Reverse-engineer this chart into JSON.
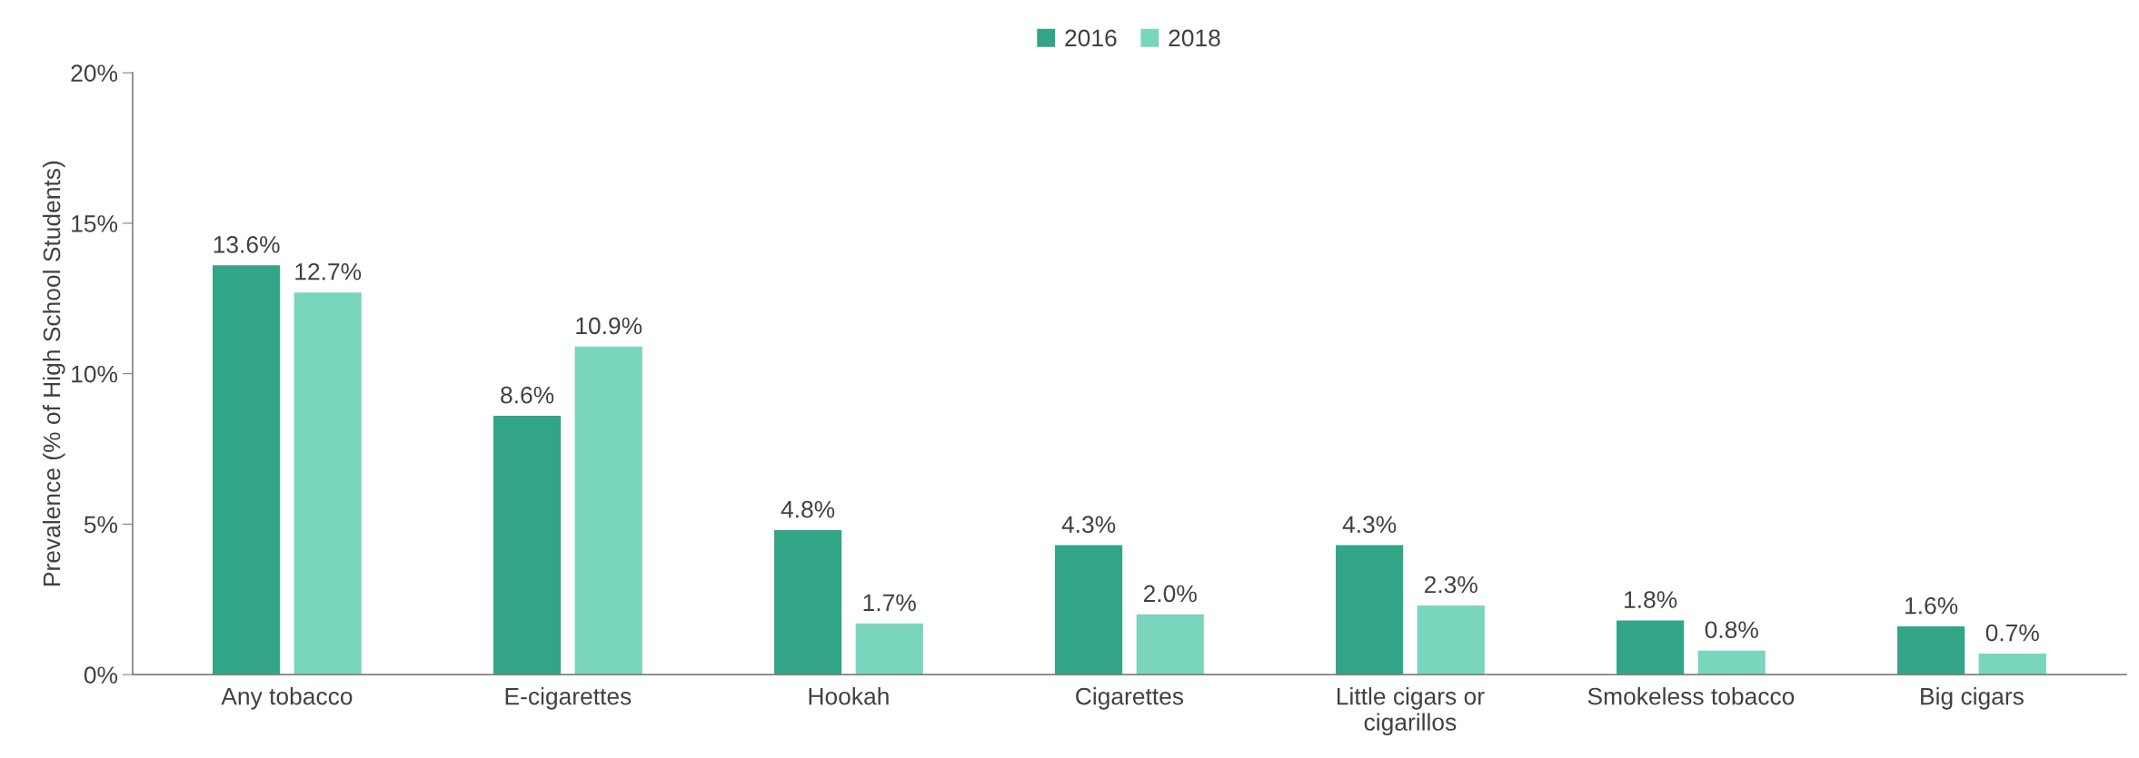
{
  "chart_data": {
    "type": "bar",
    "ylabel": "Prevalence (% of High School Students)",
    "categories": [
      "Any tobacco",
      "E-cigarettes",
      "Hookah",
      "Cigarettes",
      "Little cigars or\ncigarillos",
      "Smokeless tobacco",
      "Big cigars"
    ],
    "series": [
      {
        "name": "2016",
        "color": "#33a587",
        "values": [
          13.6,
          8.6,
          4.8,
          4.3,
          4.3,
          1.8,
          1.6
        ],
        "value_labels": [
          "13.6%",
          "8.6%",
          "4.8%",
          "4.3%",
          "4.3%",
          "1.8%",
          "1.6%"
        ]
      },
      {
        "name": "2018",
        "color": "#79d5bb",
        "values": [
          12.7,
          10.9,
          1.7,
          2.0,
          2.3,
          0.8,
          0.7
        ],
        "value_labels": [
          "12.7%",
          "10.9%",
          "1.7%",
          "2.0%",
          "2.3%",
          "0.8%",
          "0.7%"
        ]
      }
    ],
    "ylim": [
      0,
      20
    ],
    "yticks": [
      {
        "value": 0,
        "label": "0%"
      },
      {
        "value": 5,
        "label": "5%"
      },
      {
        "value": 10,
        "label": "10%"
      },
      {
        "value": 15,
        "label": "15%"
      },
      {
        "value": 20,
        "label": "20%"
      }
    ],
    "grid": false,
    "legend": "top"
  }
}
